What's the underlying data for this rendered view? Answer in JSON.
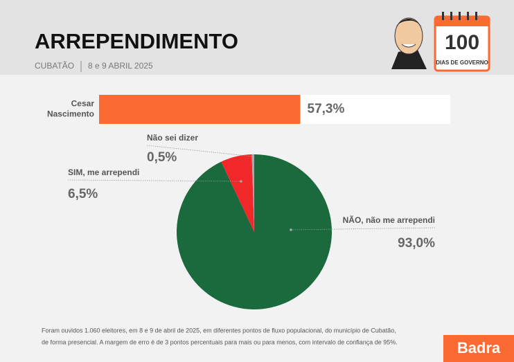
{
  "header": {
    "title": "ARREPENDIMENTO",
    "city": "CUBATÃO",
    "date": "8 e 9 ABRIL 2025"
  },
  "badge": {
    "number": "100",
    "label": "DIAS DE GOVERNO"
  },
  "chart_data": [
    {
      "type": "bar",
      "categories": [
        "Cesar Nascimento"
      ],
      "values": [
        57.3
      ],
      "value_labels": [
        "57,3%"
      ],
      "color": "#fb6a33",
      "xlim": [
        0,
        100
      ]
    },
    {
      "type": "pie",
      "categories": [
        "NÃO, não me arrependi",
        "SIM, me arrependi",
        "Não sei dizer"
      ],
      "values": [
        93.0,
        6.5,
        0.5
      ],
      "value_labels": [
        "93,0%",
        "6,5%",
        "0,5%"
      ],
      "colors": [
        "#1b6a3e",
        "#f0282a",
        "#a8a8a8"
      ]
    }
  ],
  "footnote": [
    "Foram ouvidos 1.060 eleitores, em 8 e 9 de abril de 2025, em diferentes pontos de fluxo populacional, do município de Cubatão,",
    "de forma presencial. A margem de erro é de 3 pontos percentuais para mais ou para menos, com intervalo de confiança de 95%."
  ],
  "logo": "Badra"
}
